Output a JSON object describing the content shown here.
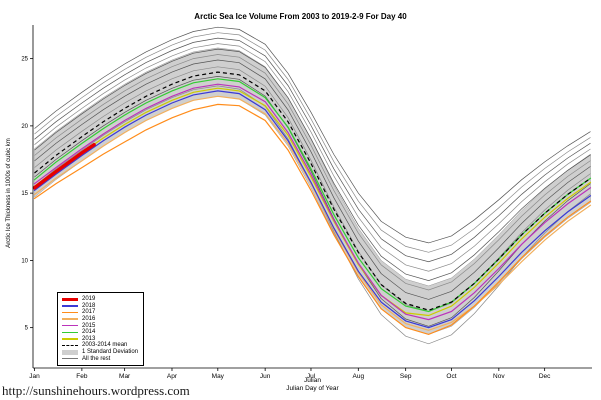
{
  "page": {
    "footer_url": "http://sunshinehours.wordpress.com"
  },
  "chart_data": {
    "type": "line",
    "title": "Arctic Sea Ice Volume From 2003 to 2019-2-9  For Day 40",
    "xlabel_line1": "Julian",
    "xlabel_line2": "Julian Day of Year",
    "ylabel": "Arctic Ice Thickness in 1000s of cubic km",
    "xlim": [
      0,
      366
    ],
    "ylim": [
      2,
      27.5
    ],
    "y_ticks": [
      5,
      10,
      15,
      20,
      25
    ],
    "x_ticks": [
      {
        "day": 1,
        "label": "Jan"
      },
      {
        "day": 32,
        "label": "Feb"
      },
      {
        "day": 60,
        "label": "Mar"
      },
      {
        "day": 91,
        "label": "Apr"
      },
      {
        "day": 121,
        "label": "May"
      },
      {
        "day": 152,
        "label": "Jun"
      },
      {
        "day": 182,
        "label": "Jul"
      },
      {
        "day": 213,
        "label": "Aug"
      },
      {
        "day": 244,
        "label": "Sep"
      },
      {
        "day": 274,
        "label": "Oct"
      },
      {
        "day": 305,
        "label": "Nov"
      },
      {
        "day": 335,
        "label": "Dec"
      }
    ],
    "x_days": [
      1,
      15,
      32,
      46,
      60,
      74,
      91,
      105,
      121,
      135,
      152,
      167,
      182,
      197,
      213,
      228,
      244,
      259,
      274,
      289,
      305,
      320,
      335,
      350,
      365
    ],
    "mean_series": {
      "name": "2003-2014 mean",
      "color": "#000000",
      "values": [
        16.5,
        17.8,
        19.2,
        20.3,
        21.3,
        22.2,
        23.1,
        23.7,
        24.0,
        23.8,
        22.6,
        20.3,
        17.2,
        13.8,
        10.6,
        8.2,
        6.8,
        6.3,
        6.9,
        8.3,
        10.1,
        11.9,
        13.5,
        14.9,
        16.1
      ]
    },
    "std_dev": 1.8,
    "band_color": "#cfcfcf",
    "series": [
      {
        "name": "2019",
        "color": "#e60000",
        "width": 3.5,
        "x": [
          1,
          15,
          32,
          40
        ],
        "values": [
          15.4,
          16.6,
          18.0,
          18.6
        ]
      },
      {
        "name": "2018",
        "color": "#3a3ad6",
        "width": 1.2,
        "values": [
          15.2,
          16.4,
          17.8,
          18.9,
          19.9,
          20.8,
          21.7,
          22.3,
          22.6,
          22.4,
          21.2,
          18.9,
          15.8,
          12.4,
          9.2,
          6.9,
          5.5,
          5.0,
          5.6,
          7.0,
          8.8,
          10.6,
          12.2,
          13.6,
          14.8
        ]
      },
      {
        "name": "2017",
        "color": "#ff8c1a",
        "width": 1.2,
        "values": [
          14.6,
          15.7,
          16.9,
          17.9,
          18.8,
          19.7,
          20.6,
          21.2,
          21.6,
          21.5,
          20.4,
          18.2,
          15.2,
          11.9,
          8.8,
          6.4,
          5.0,
          4.5,
          5.2,
          6.6,
          8.4,
          10.2,
          11.8,
          13.2,
          14.4
        ]
      },
      {
        "name": "2016",
        "color": "#f2b05e",
        "width": 1.2,
        "values": [
          14.9,
          16.1,
          17.4,
          18.5,
          19.5,
          20.4,
          21.3,
          21.9,
          22.2,
          22.0,
          20.9,
          18.7,
          15.7,
          12.3,
          9.1,
          6.7,
          5.3,
          4.8,
          5.4,
          6.6,
          8.2,
          9.9,
          11.5,
          12.9,
          14.1
        ]
      },
      {
        "name": "2015",
        "color": "#bb33bb",
        "width": 1.2,
        "values": [
          15.7,
          16.9,
          18.3,
          19.4,
          20.4,
          21.3,
          22.2,
          22.8,
          23.1,
          22.9,
          21.8,
          19.5,
          16.4,
          13.0,
          9.8,
          7.4,
          6.0,
          5.6,
          6.2,
          7.6,
          9.4,
          11.2,
          12.8,
          14.2,
          15.4
        ]
      },
      {
        "name": "2014",
        "color": "#33cc33",
        "width": 1.2,
        "values": [
          16.0,
          17.3,
          18.7,
          19.8,
          20.8,
          21.7,
          22.6,
          23.2,
          23.5,
          23.3,
          22.1,
          19.9,
          16.8,
          13.4,
          10.2,
          7.9,
          6.6,
          6.2,
          6.9,
          8.3,
          10.1,
          11.9,
          13.5,
          14.9,
          16.1
        ]
      },
      {
        "name": "2013",
        "color": "#cccc00",
        "width": 1.2,
        "values": [
          15.5,
          16.7,
          18.0,
          19.1,
          20.1,
          21.0,
          21.9,
          22.5,
          22.8,
          22.6,
          21.5,
          19.3,
          16.2,
          12.9,
          9.7,
          7.4,
          6.1,
          5.9,
          6.6,
          8.0,
          9.8,
          11.6,
          13.2,
          14.6,
          15.8
        ]
      }
    ],
    "rest": {
      "name": "All the rest",
      "color": "#777777",
      "offsets": [
        3.3,
        2.9,
        2.5,
        2.1,
        1.7,
        1.3,
        0.9,
        0.4,
        -0.3,
        -1.0
      ],
      "summer_extra": [
        1.7,
        1.4,
        1.1,
        0.8,
        0.5,
        0.2,
        -0.1,
        -0.5,
        -0.9,
        -1.5
      ]
    },
    "legend": {
      "entries": [
        {
          "label": "2019",
          "color": "#e60000",
          "style": "thick"
        },
        {
          "label": "2018",
          "color": "#3a3ad6",
          "style": "line"
        },
        {
          "label": "2017",
          "color": "#ff8c1a",
          "style": "line"
        },
        {
          "label": "2016",
          "color": "#f2b05e",
          "style": "line"
        },
        {
          "label": "2015",
          "color": "#bb33bb",
          "style": "line"
        },
        {
          "label": "2014",
          "color": "#33cc33",
          "style": "line"
        },
        {
          "label": "2013",
          "color": "#cccc00",
          "style": "line"
        },
        {
          "label": "2003-2014 mean",
          "color": "#000000",
          "style": "dashed"
        },
        {
          "label": "1 Standard Deviation",
          "color": "#cfcfcf",
          "style": "band"
        },
        {
          "label": "All the rest",
          "color": "#777777",
          "style": "thin"
        }
      ]
    }
  }
}
